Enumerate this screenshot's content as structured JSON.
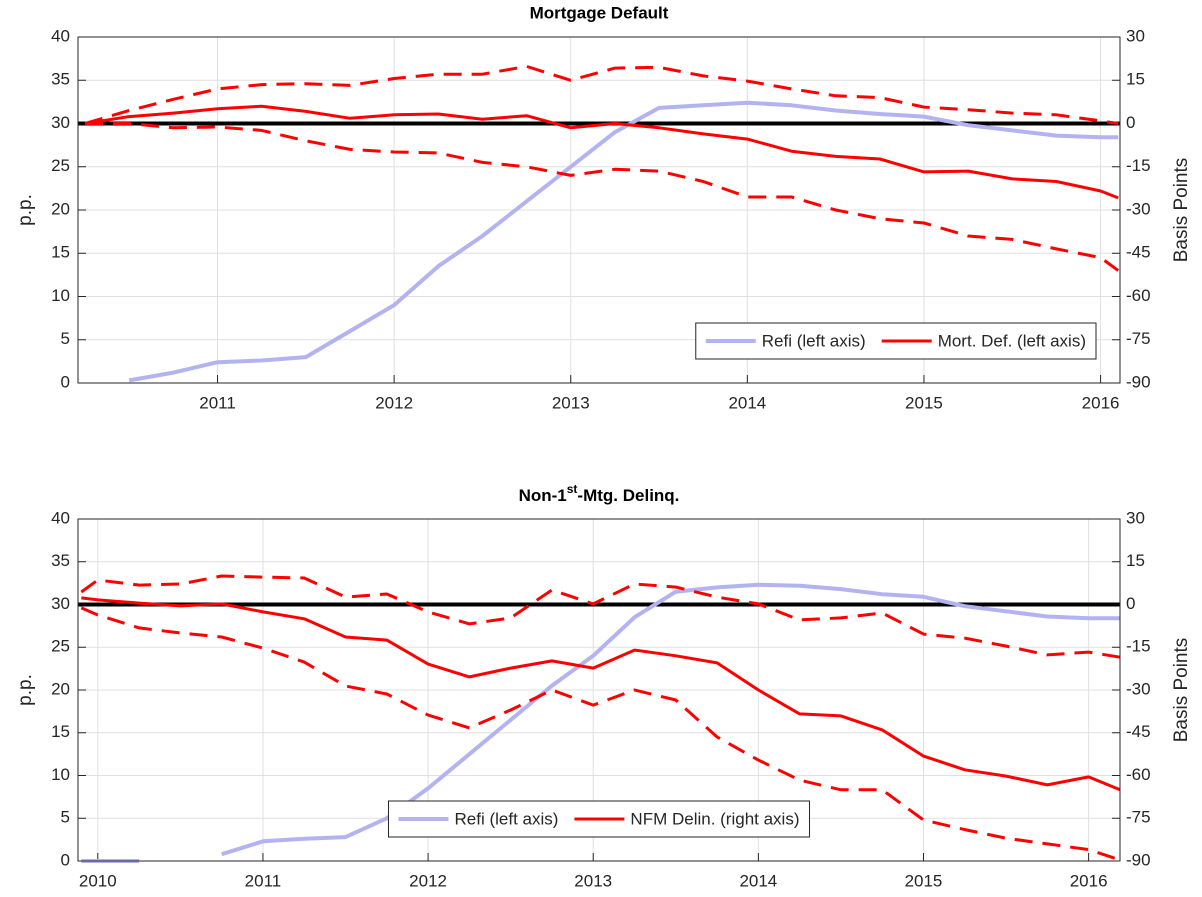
{
  "chart_data": [
    {
      "type": "line",
      "title": "Mortgage Default",
      "ylabel": "p.p.",
      "y2label": "Basis Points",
      "xlim": [
        2010.21,
        2016.11
      ],
      "xticks": [
        2011,
        2012,
        2013,
        2014,
        2015,
        2016
      ],
      "ylim": [
        0,
        40
      ],
      "yticks": [
        0,
        5,
        10,
        15,
        20,
        25,
        30,
        35,
        40
      ],
      "y2lim": [
        -90,
        30
      ],
      "y2ticks": [
        -90,
        -75,
        -60,
        -45,
        -30,
        -15,
        0,
        15,
        30
      ],
      "grid": true,
      "legend": "lower right",
      "zero_line": {
        "axis": "y2",
        "value": 0,
        "color": "#000000"
      },
      "x": [
        2010.25,
        2010.5,
        2010.75,
        2011,
        2011.25,
        2011.5,
        2011.75,
        2012,
        2012.25,
        2012.5,
        2012.75,
        2013,
        2013.25,
        2013.5,
        2013.75,
        2014,
        2014.25,
        2014.5,
        2014.75,
        2015,
        2015.25,
        2015.5,
        2015.75,
        2016,
        2016.1
      ],
      "series": [
        {
          "name": "Refi (left axis)",
          "color": "#b3b3f2",
          "axis": "y",
          "dashed": false,
          "values": [
            null,
            0.3,
            1.2,
            2.4,
            2.6,
            3.0,
            6.0,
            9.0,
            13.5,
            17.0,
            21.0,
            25.0,
            29.0,
            31.8,
            32.1,
            32.4,
            32.1,
            31.5,
            31.1,
            30.8,
            29.8,
            29.2,
            28.6,
            28.4,
            28.4
          ]
        },
        {
          "name": "Mort. Def. (left axis)",
          "color": "#ff0000",
          "axis": "y",
          "dashed": false,
          "values": [
            30.0,
            30.8,
            31.2,
            31.7,
            32.0,
            31.4,
            30.6,
            31.0,
            31.1,
            30.5,
            30.9,
            29.5,
            30.0,
            29.5,
            28.8,
            28.2,
            26.8,
            26.2,
            25.9,
            24.4,
            24.5,
            23.6,
            23.3,
            22.2,
            21.4
          ]
        },
        {
          "color": "#ff0000",
          "axis": "y",
          "dashed": true,
          "values": [
            30.0,
            31.5,
            32.8,
            34.0,
            34.5,
            34.6,
            34.4,
            35.2,
            35.7,
            35.7,
            36.6,
            35.0,
            36.4,
            36.5,
            35.5,
            34.9,
            34.0,
            33.2,
            33.0,
            31.9,
            31.6,
            31.2,
            31.0,
            30.3,
            30.0
          ]
        },
        {
          "color": "#ff0000",
          "axis": "y",
          "dashed": true,
          "values": [
            30.0,
            30.0,
            29.5,
            29.6,
            29.2,
            28.0,
            27.0,
            26.7,
            26.6,
            25.5,
            25.0,
            24.0,
            24.7,
            24.5,
            23.3,
            21.5,
            21.5,
            20.0,
            19.0,
            18.5,
            17.0,
            16.6,
            15.5,
            14.5,
            13.0
          ]
        }
      ]
    },
    {
      "type": "line",
      "title": {
        "text": "Non-1",
        "superscript": "st",
        "suffix": "-Mtg. Delinq."
      },
      "ylabel": "p.p.",
      "y2label": "Basis Points",
      "xlim": [
        2009.88,
        2016.19
      ],
      "xticks": [
        2010,
        2011,
        2012,
        2013,
        2014,
        2015,
        2016
      ],
      "ylim": [
        0,
        40
      ],
      "yticks": [
        0,
        5,
        10,
        15,
        20,
        25,
        30,
        35,
        40
      ],
      "y2lim": [
        -90,
        30
      ],
      "y2ticks": [
        -90,
        -75,
        -60,
        -45,
        -30,
        -15,
        0,
        15,
        30
      ],
      "grid": true,
      "legend": "lower center",
      "zero_line": {
        "axis": "y2",
        "value": 0,
        "color": "#000000"
      },
      "x": [
        2009.9,
        2010,
        2010.25,
        2010.5,
        2010.75,
        2011,
        2011.25,
        2011.5,
        2011.75,
        2012,
        2012.25,
        2012.5,
        2012.75,
        2013,
        2013.25,
        2013.5,
        2013.75,
        2014,
        2014.25,
        2014.5,
        2014.75,
        2015,
        2015.25,
        2015.5,
        2015.75,
        2016,
        2016.19
      ],
      "series": [
        {
          "name": "Refi (left axis)",
          "color": "#b3b3f2",
          "axis": "y",
          "dashed": false,
          "values": [
            0,
            0,
            0,
            null,
            0.8,
            2.3,
            2.6,
            2.8,
            5.0,
            8.5,
            12.5,
            16.5,
            20.5,
            24.0,
            28.5,
            31.5,
            32.0,
            32.3,
            32.2,
            31.8,
            31.2,
            30.9,
            29.8,
            29.2,
            28.6,
            28.4,
            28.4
          ]
        },
        {
          "name": "NFM Delin. (right axis)",
          "color": "#ff0000",
          "axis": "y2",
          "dashed": false,
          "values": [
            2.3,
            1.6,
            0.5,
            -0.5,
            0.2,
            -2.6,
            -5.0,
            -11.4,
            -12.5,
            -20.9,
            -25.4,
            -22.3,
            -19.8,
            -22.3,
            -16.0,
            -18.0,
            -20.5,
            -30.0,
            -38.4,
            -39.1,
            -44.0,
            -53.2,
            -58.0,
            -60.2,
            -63.3,
            -60.5,
            -65.0
          ]
        },
        {
          "color": "#ff0000",
          "axis": "y2",
          "dashed": true,
          "values": [
            4.4,
            8.6,
            6.8,
            7.2,
            10.0,
            9.6,
            9.3,
            2.6,
            3.7,
            -2.6,
            -6.8,
            -4.7,
            5.1,
            0.2,
            7.2,
            6.1,
            2.6,
            0.2,
            -5.4,
            -4.7,
            -3.0,
            -10.4,
            -11.8,
            -14.6,
            -17.7,
            -16.7,
            -18.5
          ]
        },
        {
          "color": "#ff0000",
          "axis": "y2",
          "dashed": true,
          "values": [
            -1.2,
            -3.7,
            -8.2,
            -10.0,
            -11.4,
            -15.3,
            -20.2,
            -28.6,
            -31.4,
            -38.8,
            -43.3,
            -37.0,
            -30.0,
            -35.3,
            -30.0,
            -33.5,
            -46.5,
            -54.6,
            -61.6,
            -65.0,
            -65.0,
            -75.6,
            -79.0,
            -82.0,
            -84.0,
            -86.0,
            -89.6
          ]
        }
      ]
    }
  ]
}
